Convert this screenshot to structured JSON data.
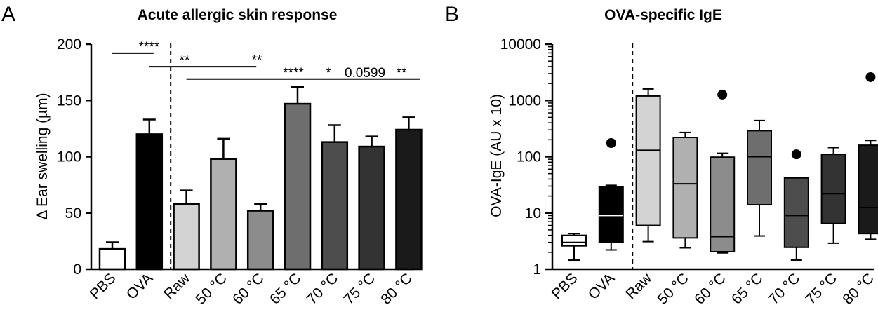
{
  "chart_data": [
    {
      "type": "bar",
      "panel_label": "A",
      "title": "Acute allergic skin response",
      "ylabel": "Δ Ear swelling (µm)",
      "xlabel": "",
      "ylim": [
        0,
        200
      ],
      "yticks": [
        "0",
        "50",
        "100",
        "150",
        "200"
      ],
      "categories": [
        "PBS",
        "OVA",
        "Raw",
        "50 °C",
        "60 °C",
        "65 °C",
        "70 °C",
        "75 °C",
        "80 °C"
      ],
      "values": [
        18,
        120,
        58,
        98,
        52,
        147,
        113,
        109,
        124
      ],
      "error": [
        6,
        13,
        12,
        18,
        6,
        15,
        15,
        9,
        11
      ],
      "colors": [
        "#ffffff",
        "#000000",
        "#d3d3d3",
        "#b0b0b0",
        "#8c8c8c",
        "#6e6e6e",
        "#4d4d4d",
        "#333333",
        "#1a1a1a"
      ],
      "annotations": [
        {
          "from": "PBS",
          "to": "OVA",
          "y": 192,
          "label": "****"
        },
        {
          "from": "OVA",
          "to": "60 °C",
          "y": 180,
          "label": "**  **"
        },
        {
          "from": "Raw",
          "to": "80 °C",
          "y": 169,
          "label": "****   *  0.0599  **"
        }
      ],
      "divider_after": "OVA"
    },
    {
      "type": "box",
      "panel_label": "B",
      "title": "OVA-specific IgE",
      "ylabel": "OVA-IgE (AU x 10)",
      "xlabel": "",
      "yscale": "log",
      "ylim": [
        1,
        10000
      ],
      "yticks": [
        "1",
        "10",
        "100",
        "1000",
        "10000"
      ],
      "categories": [
        "PBS",
        "OVA",
        "Raw",
        "50 °C",
        "60 °C",
        "65 °C",
        "70 °C",
        "75 °C",
        "80 °C"
      ],
      "series": [
        {
          "name": "PBS",
          "min": 1.45,
          "q1": 2.6,
          "median": 3.0,
          "q3": 4.0,
          "max": 4.3,
          "outliers": []
        },
        {
          "name": "OVA",
          "min": 2.2,
          "q1": 3.0,
          "median": 9,
          "q3": 29,
          "max": 31,
          "outliers": [
            175
          ]
        },
        {
          "name": "Raw",
          "min": 3.1,
          "q1": 6,
          "median": 130,
          "q3": 1200,
          "max": 1600,
          "outliers": []
        },
        {
          "name": "50 °C",
          "min": 2.4,
          "q1": 3.6,
          "median": 33,
          "q3": 220,
          "max": 270,
          "outliers": []
        },
        {
          "name": "60 °C",
          "min": 1.95,
          "q1": 2.05,
          "median": 3.8,
          "q3": 98,
          "max": 115,
          "outliers": [
            1270
          ]
        },
        {
          "name": "65 °C",
          "min": 3.9,
          "q1": 14,
          "median": 100,
          "q3": 290,
          "max": 440,
          "outliers": []
        },
        {
          "name": "70 °C",
          "min": 1.45,
          "q1": 2.45,
          "median": 9,
          "q3": 42,
          "max": 42,
          "outliers": [
            110
          ]
        },
        {
          "name": "75 °C",
          "min": 2.9,
          "q1": 6.5,
          "median": 22,
          "q3": 110,
          "max": 145,
          "outliers": []
        },
        {
          "name": "80 °C",
          "min": 3.4,
          "q1": 4.3,
          "median": 12.5,
          "q3": 160,
          "max": 195,
          "outliers": [
            2600
          ]
        }
      ],
      "colors": [
        "#ffffff",
        "#000000",
        "#d3d3d3",
        "#b0b0b0",
        "#8c8c8c",
        "#6e6e6e",
        "#4d4d4d",
        "#333333",
        "#1a1a1a"
      ],
      "divider_after": "OVA"
    }
  ]
}
